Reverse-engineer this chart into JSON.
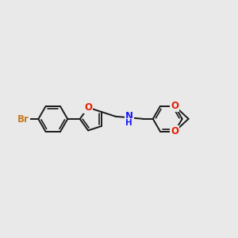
{
  "background_color": "#e9e9e9",
  "bond_color": "#1a1a1a",
  "bond_width": 1.4,
  "atom_colors": {
    "Br": "#c87820",
    "O": "#e52000",
    "N": "#1a1aff",
    "H": "#1a1aff"
  },
  "font_size": 8.5,
  "figsize": [
    3.0,
    3.0
  ],
  "dpi": 100,
  "xlim": [
    0,
    10
  ],
  "ylim": [
    2.5,
    7.5
  ]
}
